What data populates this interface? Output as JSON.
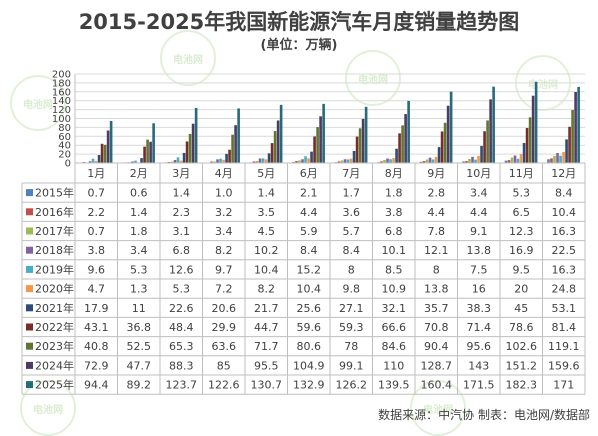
{
  "title": "2015-2025年我国新能源汽车月度销量趋势图",
  "subtitle": "(单位：万辆)",
  "source": "数据来源：中汽协  制表：电池网/数据部",
  "watermark": "电池网",
  "chart_data": {
    "type": "bar",
    "title": "2015-2025年我国新能源汽车月度销量趋势图",
    "ylabel": "",
    "ylim": [
      0,
      200
    ],
    "yticks": [
      0,
      20,
      40,
      60,
      80,
      100,
      120,
      140,
      160,
      180,
      200
    ],
    "grid": true,
    "legend": "left-table",
    "categories": [
      "1月",
      "2月",
      "3月",
      "4月",
      "5月",
      "6月",
      "7月",
      "8月",
      "9月",
      "10月",
      "11月",
      "12月"
    ],
    "series": [
      {
        "name": "2015年",
        "color": "#4f81bd",
        "values": [
          0.7,
          0.6,
          1.4,
          1.0,
          1.4,
          2.1,
          1.7,
          1.8,
          2.8,
          3.4,
          5.3,
          8.4
        ],
        "labels": [
          "0.7",
          "0.6",
          "1.4",
          "1.0",
          "1.4",
          "2.1",
          "1.7",
          "1.8",
          "2.8",
          "3.4",
          "5.3",
          "8.4"
        ]
      },
      {
        "name": "2016年",
        "color": "#c0504d",
        "values": [
          2.2,
          1.4,
          2.3,
          3.2,
          3.5,
          4.4,
          3.6,
          3.8,
          4.4,
          4.4,
          6.5,
          10.4
        ],
        "labels": [
          "2.2",
          "1.4",
          "2.3",
          "3.2",
          "3.5",
          "4.4",
          "3.6",
          "3.8",
          "4.4",
          "4.4",
          "6.5",
          "10.4"
        ]
      },
      {
        "name": "2017年",
        "color": "#9bbb59",
        "values": [
          0.7,
          1.8,
          3.1,
          3.4,
          4.5,
          5.9,
          5.7,
          6.8,
          7.8,
          9.1,
          12.3,
          16.3
        ],
        "labels": [
          "0.7",
          "1.8",
          "3.1",
          "3.4",
          "4.5",
          "5.9",
          "5.7",
          "6.8",
          "7.8",
          "9.1",
          "12.3",
          "16.3"
        ]
      },
      {
        "name": "2018年",
        "color": "#8064a2",
        "values": [
          3.8,
          3.4,
          6.8,
          8.2,
          10.2,
          8.4,
          8.4,
          10.1,
          12.1,
          13.8,
          16.9,
          22.5
        ],
        "labels": [
          "3.8",
          "3.4",
          "6.8",
          "8.2",
          "10.2",
          "8.4",
          "8.4",
          "10.1",
          "12.1",
          "13.8",
          "16.9",
          "22.5"
        ]
      },
      {
        "name": "2019年",
        "color": "#4bacc6",
        "values": [
          9.6,
          5.3,
          12.6,
          9.7,
          10.4,
          15.2,
          8,
          8.5,
          8,
          7.5,
          9.5,
          16.3
        ],
        "labels": [
          "9.6",
          "5.3",
          "12.6",
          "9.7",
          "10.4",
          "15.2",
          "8",
          "8.5",
          "8",
          "7.5",
          "9.5",
          "16.3"
        ]
      },
      {
        "name": "2020年",
        "color": "#f79646",
        "values": [
          4.7,
          1.3,
          5.3,
          7.2,
          8.2,
          10.4,
          9.8,
          10.9,
          13.8,
          16,
          20,
          24.8
        ],
        "labels": [
          "4.7",
          "1.3",
          "5.3",
          "7.2",
          "8.2",
          "10.4",
          "9.8",
          "10.9",
          "13.8",
          "16",
          "20",
          "24.8"
        ]
      },
      {
        "name": "2021年",
        "color": "#2c4d75",
        "values": [
          17.9,
          11,
          22.6,
          20.6,
          21.7,
          25.6,
          27.1,
          32.1,
          35.7,
          38.3,
          45,
          53.1
        ],
        "labels": [
          "17.9",
          "11",
          "22.6",
          "20.6",
          "21.7",
          "25.6",
          "27.1",
          "32.1",
          "35.7",
          "38.3",
          "45",
          "53.1"
        ]
      },
      {
        "name": "2022年",
        "color": "#772c2a",
        "values": [
          43.1,
          36.8,
          48.4,
          29.9,
          44.7,
          59.6,
          59.3,
          66.6,
          70.8,
          71.4,
          78.6,
          81.4
        ],
        "labels": [
          "43.1",
          "36.8",
          "48.4",
          "29.9",
          "44.7",
          "59.6",
          "59.3",
          "66.6",
          "70.8",
          "71.4",
          "78.6",
          "81.4"
        ]
      },
      {
        "name": "2023年",
        "color": "#5f7530",
        "values": [
          40.8,
          52.5,
          65.3,
          63.6,
          71.7,
          80.6,
          78,
          84.6,
          90.4,
          95.6,
          102.6,
          119.1
        ],
        "labels": [
          "40.8",
          "52.5",
          "65.3",
          "63.6",
          "71.7",
          "80.6",
          "78",
          "84.6",
          "90.4",
          "95.6",
          "102.6",
          "119.1"
        ]
      },
      {
        "name": "2024年",
        "color": "#4d3b62",
        "values": [
          72.9,
          47.7,
          88.3,
          85,
          95.5,
          104.9,
          99.1,
          110,
          128.7,
          143,
          151.2,
          159.6
        ],
        "labels": [
          "72.9",
          "47.7",
          "88.3",
          "85",
          "95.5",
          "104.9",
          "99.1",
          "110",
          "128.7",
          "143",
          "151.2",
          "159.6"
        ]
      },
      {
        "name": "2025年",
        "color": "#276a7c",
        "values": [
          94.4,
          89.2,
          123.7,
          122.6,
          130.7,
          132.9,
          126.2,
          139.5,
          160.4,
          171.5,
          182.3,
          171
        ],
        "labels": [
          "94.4",
          "89.2",
          "123.7",
          "122.6",
          "130.7",
          "132.9",
          "126.2",
          "139.5",
          "160.4",
          "171.5",
          "182.3",
          "171"
        ]
      }
    ]
  }
}
